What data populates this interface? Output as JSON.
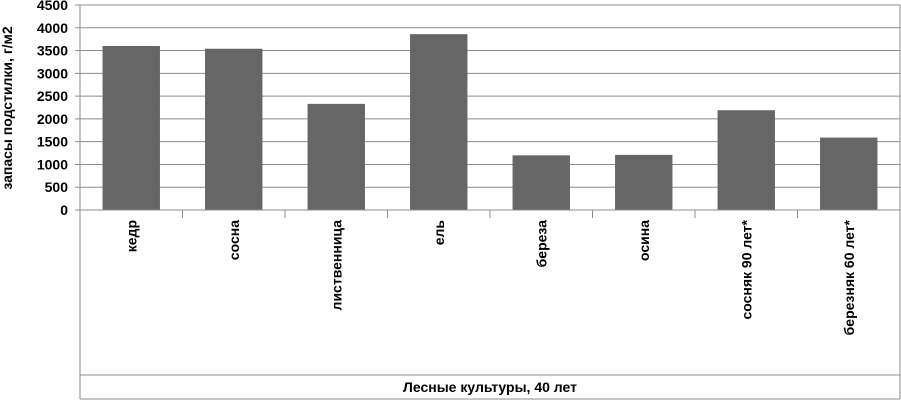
{
  "chart_data": {
    "type": "bar",
    "categories": [
      "кедр",
      "сосна",
      "лиственница",
      "ель",
      "береза",
      "осина",
      "сосняк 90 лет*",
      "березняк 60 лет*"
    ],
    "values": [
      3600,
      3540,
      2330,
      3860,
      1200,
      1210,
      2190,
      1590
    ],
    "yticks": [
      "0",
      "500",
      "1000",
      "1500",
      "2000",
      "2500",
      "3000",
      "3500",
      "4000",
      "4500"
    ],
    "ylim": [
      0,
      4500
    ],
    "xlabel": "Лесные культуры, 40 лет",
    "ylabel": "запасы подстилки, г/м2",
    "grid": true,
    "legend": "none",
    "bar_color": "#666666"
  }
}
